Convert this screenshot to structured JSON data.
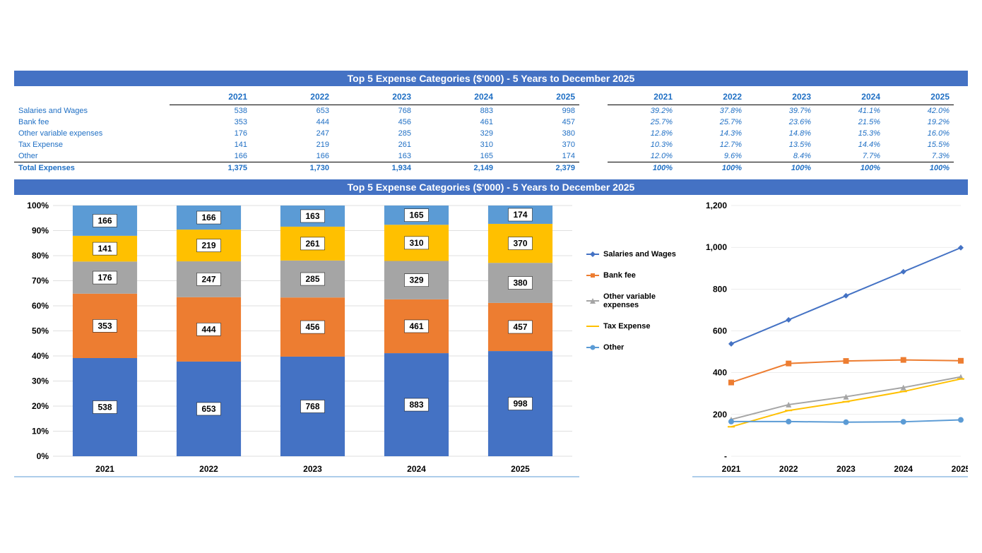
{
  "title_bar": "Top 5 Expense Categories ($'000) - 5 Years to December 2025",
  "years": [
    "2021",
    "2022",
    "2023",
    "2024",
    "2025"
  ],
  "series": [
    {
      "name": "Salaries and Wages",
      "color": "#4472c4",
      "values": [
        538,
        653,
        768,
        883,
        998
      ],
      "pct": [
        "39.2%",
        "37.8%",
        "39.7%",
        "41.1%",
        "42.0%"
      ]
    },
    {
      "name": "Bank fee",
      "color": "#ed7d31",
      "values": [
        353,
        444,
        456,
        461,
        457
      ],
      "pct": [
        "25.7%",
        "25.7%",
        "23.6%",
        "21.5%",
        "19.2%"
      ]
    },
    {
      "name": "Other variable expenses",
      "color": "#a5a5a5",
      "values": [
        176,
        247,
        285,
        329,
        380
      ],
      "pct": [
        "12.8%",
        "14.3%",
        "14.8%",
        "15.3%",
        "16.0%"
      ]
    },
    {
      "name": "Tax Expense",
      "color": "#ffc000",
      "values": [
        141,
        219,
        261,
        310,
        370
      ],
      "pct": [
        "10.3%",
        "12.7%",
        "13.5%",
        "14.4%",
        "15.5%"
      ]
    },
    {
      "name": "Other",
      "color": "#5b9bd5",
      "values": [
        166,
        166,
        163,
        165,
        174
      ],
      "pct": [
        "12.0%",
        "9.6%",
        "8.4%",
        "7.7%",
        "7.3%"
      ]
    }
  ],
  "totals": {
    "label": "Total Expenses",
    "values": [
      "1,375",
      "1,730",
      "1,934",
      "2,149",
      "2,379"
    ],
    "pct": [
      "100%",
      "100%",
      "100%",
      "100%",
      "100%"
    ]
  },
  "stacked_chart": {
    "type": "bar-stacked-100pct",
    "background_color": "#ffffff",
    "grid_color": "#bfbfbf",
    "y_ticks": [
      "0%",
      "10%",
      "20%",
      "30%",
      "40%",
      "50%",
      "60%",
      "70%",
      "80%",
      "90%",
      "100%"
    ],
    "bar_width_ratio": 0.62,
    "label_fontsize": 12,
    "axis_fontsize": 12
  },
  "line_chart": {
    "type": "line",
    "background_color": "#ffffff",
    "grid_color": "#d9d9d9",
    "ylim": [
      0,
      1200
    ],
    "y_ticks": [
      "-",
      "200",
      "400",
      "600",
      "800",
      "1,000",
      "1,200"
    ],
    "line_width": 2,
    "marker_size": 4,
    "axis_fontsize": 12
  },
  "legend": {
    "items": [
      {
        "label": "Salaries and Wages",
        "color": "#4472c4",
        "marker": "diamond"
      },
      {
        "label": "Bank fee",
        "color": "#ed7d31",
        "marker": "square"
      },
      {
        "label": "Other variable expenses",
        "color": "#a5a5a5",
        "marker": "triangle"
      },
      {
        "label": "Tax Expense",
        "color": "#ffc000",
        "marker": "dash"
      },
      {
        "label": "Other",
        "color": "#5b9bd5",
        "marker": "circle"
      }
    ]
  }
}
